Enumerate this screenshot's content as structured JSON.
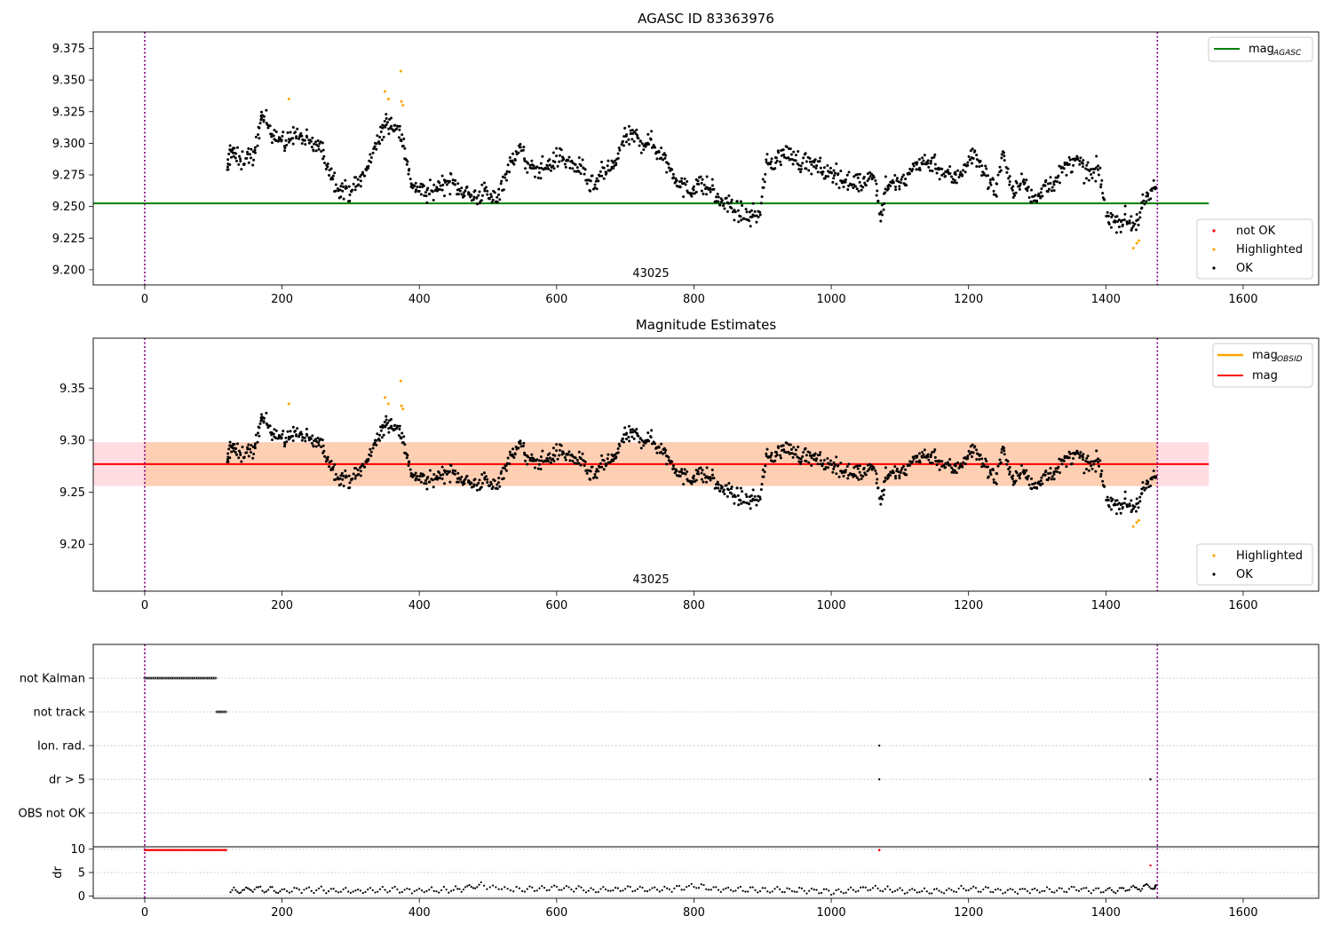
{
  "colors": {
    "ok": "#000000",
    "highlighted": "#ffa500",
    "not_ok": "#ff0000",
    "mag_agasc_line": "#008000",
    "mag_line": "#ff0000",
    "mag_obsid_line": "#ffa500",
    "band_outer": "#ffdde2",
    "band_inner": "#ffcfb4",
    "vline": "#800080",
    "grid": "#b0b0b0"
  },
  "chart_data": [
    {
      "type": "scatter",
      "title": "AGASC ID 83363976",
      "obsid_label": "43025",
      "xlim": [
        -75,
        1710
      ],
      "ylim": [
        9.188,
        9.388
      ],
      "xticks": [
        0,
        200,
        400,
        600,
        800,
        1000,
        1200,
        1400,
        1600
      ],
      "yticks": [
        9.2,
        9.225,
        9.25,
        9.275,
        9.3,
        9.325,
        9.35,
        9.375
      ],
      "ytick_labels": [
        "9.200",
        "9.225",
        "9.250",
        "9.275",
        "9.300",
        "9.325",
        "9.350",
        "9.375"
      ],
      "mag_agasc": 9.2525,
      "hline_x": [
        -75,
        1550
      ],
      "obsid_bounds": [
        0,
        1475
      ],
      "line_legend": {
        "label": "mag",
        "sub": "AGASC",
        "position": "top-right"
      },
      "point_legend": {
        "entries": [
          "not OK",
          "Highlighted",
          "OK"
        ],
        "position": "lower-right"
      },
      "ok_segments": [
        [
          120,
          9.275
        ],
        [
          125,
          9.297
        ],
        [
          130,
          9.291
        ],
        [
          140,
          9.285
        ],
        [
          150,
          9.292
        ],
        [
          160,
          9.287
        ],
        [
          168,
          9.32
        ],
        [
          175,
          9.318
        ],
        [
          185,
          9.31
        ],
        [
          195,
          9.305
        ],
        [
          205,
          9.298
        ],
        [
          215,
          9.308
        ],
        [
          225,
          9.305
        ],
        [
          235,
          9.302
        ],
        [
          245,
          9.298
        ],
        [
          255,
          9.298
        ],
        [
          265,
          9.285
        ],
        [
          275,
          9.272
        ],
        [
          285,
          9.264
        ],
        [
          295,
          9.262
        ],
        [
          305,
          9.265
        ],
        [
          315,
          9.272
        ],
        [
          325,
          9.28
        ],
        [
          335,
          9.3
        ],
        [
          345,
          9.305
        ],
        [
          352,
          9.318
        ],
        [
          360,
          9.315
        ],
        [
          370,
          9.31
        ],
        [
          378,
          9.3
        ],
        [
          385,
          9.272
        ],
        [
          395,
          9.265
        ],
        [
          405,
          9.262
        ],
        [
          415,
          9.26
        ],
        [
          425,
          9.265
        ],
        [
          435,
          9.268
        ],
        [
          445,
          9.27
        ],
        [
          455,
          9.265
        ],
        [
          465,
          9.263
        ],
        [
          475,
          9.258
        ],
        [
          485,
          9.258
        ],
        [
          495,
          9.262
        ],
        [
          505,
          9.255
        ],
        [
          515,
          9.26
        ],
        [
          525,
          9.275
        ],
        [
          535,
          9.285
        ],
        [
          545,
          9.298
        ],
        [
          555,
          9.285
        ],
        [
          565,
          9.278
        ],
        [
          575,
          9.28
        ],
        [
          585,
          9.282
        ],
        [
          595,
          9.285
        ],
        [
          605,
          9.29
        ],
        [
          615,
          9.285
        ],
        [
          625,
          9.282
        ],
        [
          635,
          9.28
        ],
        [
          645,
          9.27
        ],
        [
          655,
          9.265
        ],
        [
          665,
          9.275
        ],
        [
          675,
          9.28
        ],
        [
          685,
          9.282
        ],
        [
          695,
          9.3
        ],
        [
          705,
          9.305
        ],
        [
          715,
          9.305
        ],
        [
          725,
          9.3
        ],
        [
          735,
          9.302
        ],
        [
          745,
          9.295
        ],
        [
          755,
          9.29
        ],
        [
          765,
          9.28
        ],
        [
          775,
          9.272
        ],
        [
          785,
          9.265
        ],
        [
          795,
          9.262
        ],
        [
          805,
          9.27
        ],
        [
          815,
          9.265
        ],
        [
          825,
          9.265
        ],
        [
          835,
          9.255
        ],
        [
          845,
          9.252
        ],
        [
          855,
          9.25
        ],
        [
          865,
          9.245
        ],
        [
          875,
          9.243
        ],
        [
          885,
          9.242
        ],
        [
          895,
          9.245
        ],
        [
          905,
          9.282
        ],
        [
          915,
          9.285
        ],
        [
          925,
          9.29
        ],
        [
          935,
          9.292
        ],
        [
          945,
          9.29
        ],
        [
          955,
          9.285
        ],
        [
          965,
          9.285
        ],
        [
          975,
          9.282
        ],
        [
          985,
          9.28
        ],
        [
          995,
          9.275
        ],
        [
          1005,
          9.278
        ],
        [
          1015,
          9.272
        ],
        [
          1025,
          9.268
        ],
        [
          1035,
          9.27
        ],
        [
          1045,
          9.268
        ],
        [
          1055,
          9.275
        ],
        [
          1065,
          9.27
        ],
        [
          1072,
          9.24
        ],
        [
          1080,
          9.268
        ],
        [
          1090,
          9.268
        ],
        [
          1100,
          9.268
        ],
        [
          1110,
          9.27
        ],
        [
          1120,
          9.282
        ],
        [
          1130,
          9.285
        ],
        [
          1140,
          9.285
        ],
        [
          1150,
          9.285
        ],
        [
          1160,
          9.278
        ],
        [
          1170,
          9.275
        ],
        [
          1180,
          9.272
        ],
        [
          1190,
          9.278
        ],
        [
          1200,
          9.288
        ],
        [
          1210,
          9.29
        ],
        [
          1220,
          9.28
        ],
        [
          1230,
          9.27
        ],
        [
          1240,
          9.262
        ],
        [
          1250,
          9.295
        ],
        [
          1260,
          9.265
        ],
        [
          1270,
          9.265
        ],
        [
          1280,
          9.27
        ],
        [
          1290,
          9.258
        ],
        [
          1300,
          9.255
        ],
        [
          1310,
          9.268
        ],
        [
          1320,
          9.268
        ],
        [
          1330,
          9.272
        ],
        [
          1340,
          9.28
        ],
        [
          1350,
          9.285
        ],
        [
          1360,
          9.285
        ],
        [
          1370,
          9.278
        ],
        [
          1380,
          9.275
        ],
        [
          1390,
          9.28
        ],
        [
          1400,
          9.245
        ],
        [
          1410,
          9.24
        ],
        [
          1420,
          9.238
        ],
        [
          1430,
          9.24
        ],
        [
          1440,
          9.235
        ],
        [
          1450,
          9.245
        ],
        [
          1460,
          9.255
        ],
        [
          1470,
          9.265
        ]
      ],
      "highlighted_points": [
        [
          210,
          9.335
        ],
        [
          350,
          9.341
        ],
        [
          355,
          9.335
        ],
        [
          373,
          9.357
        ],
        [
          374,
          9.333
        ],
        [
          376,
          9.33
        ],
        [
          1440,
          9.217
        ],
        [
          1445,
          9.221
        ],
        [
          1448,
          9.223
        ]
      ]
    },
    {
      "type": "scatter",
      "title": "Magnitude Estimates",
      "obsid_label": "43025",
      "xlim": [
        -75,
        1710
      ],
      "ylim": [
        9.155,
        9.398
      ],
      "xticks": [
        0,
        200,
        400,
        600,
        800,
        1000,
        1200,
        1400,
        1600
      ],
      "yticks": [
        9.2,
        9.25,
        9.3,
        9.35
      ],
      "ytick_labels": [
        "9.20",
        "9.25",
        "9.30",
        "9.35"
      ],
      "mag": 9.277,
      "mag_band": [
        9.256,
        9.298
      ],
      "hline_x": [
        -75,
        1550
      ],
      "obsid_bounds": [
        0,
        1475
      ],
      "line_legend": {
        "entries": [
          {
            "label": "mag",
            "sub": "OBSID"
          },
          {
            "label": "mag",
            "sub": ""
          }
        ],
        "position": "top-right"
      },
      "point_legend": {
        "entries": [
          "Highlighted",
          "OK"
        ],
        "position": "lower-right"
      }
    },
    {
      "type": "scatter",
      "title": "",
      "xlim": [
        -75,
        1710
      ],
      "xticks": [
        0,
        200,
        400,
        600,
        800,
        1000,
        1200,
        1400,
        1600
      ],
      "flag_rows": [
        "not Kalman",
        "not track",
        "Ion. rad.",
        "dr > 5",
        "OBS not OK"
      ],
      "flags": {
        "not Kalman": [
          [
            0,
            105
          ]
        ],
        "not track": [
          [
            105,
            120
          ]
        ],
        "Ion. rad.": [
          [
            1070,
            1070
          ]
        ],
        "dr > 5": [
          [
            1070,
            1070
          ],
          [
            1465,
            1465
          ]
        ],
        "OBS not OK": []
      },
      "dr_ylabel": "dr",
      "dr_ylim": [
        -0.5,
        10.5
      ],
      "dr_yticks": [
        0,
        5,
        10
      ],
      "dr_clipped": [
        [
          0,
          120,
          9.8
        ],
        [
          1070,
          1070,
          9.8
        ]
      ],
      "dr_red_points": [
        [
          1465,
          6.5
        ]
      ],
      "dr_baseline": [
        [
          125,
          1.0
        ],
        [
          160,
          1.5
        ],
        [
          200,
          1.2
        ],
        [
          250,
          1.4
        ],
        [
          300,
          1.0
        ],
        [
          350,
          1.3
        ],
        [
          400,
          1.1
        ],
        [
          450,
          1.3
        ],
        [
          490,
          2.2
        ],
        [
          550,
          1.2
        ],
        [
          600,
          1.8
        ],
        [
          650,
          1.2
        ],
        [
          700,
          1.5
        ],
        [
          750,
          1.3
        ],
        [
          800,
          2.0
        ],
        [
          850,
          1.4
        ],
        [
          900,
          1.2
        ],
        [
          950,
          1.3
        ],
        [
          1000,
          0.9
        ],
        [
          1050,
          1.6
        ],
        [
          1100,
          1.2
        ],
        [
          1150,
          1.0
        ],
        [
          1200,
          1.7
        ],
        [
          1250,
          1.1
        ],
        [
          1300,
          1.2
        ],
        [
          1350,
          1.4
        ],
        [
          1400,
          1.2
        ],
        [
          1440,
          1.6
        ],
        [
          1470,
          2.0
        ]
      ]
    }
  ]
}
